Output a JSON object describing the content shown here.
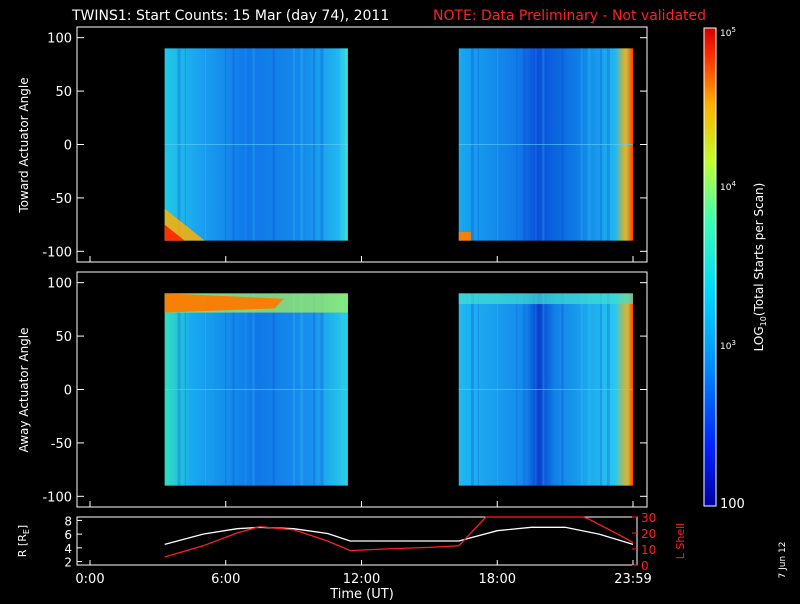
{
  "header": {
    "title": "TWINS1: Start Counts: 15 Mar (day  74), 2011",
    "note": "NOTE: Data Preliminary - Not validated",
    "note_color": "#ff2020"
  },
  "panels": {
    "toward": {
      "ylabel": "Toward Actuator Angle"
    },
    "away": {
      "ylabel": "Away Actuator Angle"
    },
    "ephem": {
      "ylabel_left": "R [R",
      "ylabel_left_sub": "E",
      "ylabel_left_end": "]",
      "ylabel_right": "L Shell",
      "ylabel_right_color": "#ff2020"
    }
  },
  "colorbar": {
    "label": "LOG",
    "label_sub": "10",
    "label_rest": "(Total Starts per Scan)",
    "tick_labels": [
      "100",
      "10",
      "10",
      "10"
    ],
    "tick_sups": [
      "",
      "3",
      "4",
      "5"
    ]
  },
  "xaxis": {
    "label": "Time (UT)"
  },
  "footer": {
    "date": "7 Jun 12"
  },
  "chart_data": [
    {
      "type": "heatmap",
      "title": "Toward Actuator Angle",
      "ylabel": "Toward Actuator Angle",
      "ylim": [
        -110,
        110
      ],
      "y_ticks": [
        100,
        50,
        0,
        -50,
        -100
      ],
      "x_ticks": [
        "0:00",
        "6:00",
        "12:00",
        "18:00",
        "23:59"
      ],
      "xlim_hours": [
        0,
        24
      ],
      "z_scale": "log10",
      "z_range": [
        100,
        100000
      ],
      "data_blocks": [
        {
          "x_hours": [
            3.3,
            11.4
          ],
          "y_deg": [
            -90,
            90
          ],
          "typical_log_counts": 3.0
        },
        {
          "x_hours": [
            16.3,
            24.0
          ],
          "y_deg": [
            -90,
            90
          ],
          "typical_log_counts": 2.9
        }
      ]
    },
    {
      "type": "heatmap",
      "title": "Away Actuator Angle",
      "ylabel": "Away Actuator Angle",
      "ylim": [
        -110,
        110
      ],
      "y_ticks": [
        100,
        50,
        0,
        -50,
        -100
      ],
      "x_ticks": [
        "0:00",
        "6:00",
        "12:00",
        "18:00",
        "23:59"
      ],
      "xlim_hours": [
        0,
        24
      ],
      "z_scale": "log10",
      "z_range": [
        100,
        100000
      ],
      "data_blocks": [
        {
          "x_hours": [
            3.3,
            11.4
          ],
          "y_deg": [
            -90,
            90
          ],
          "typical_log_counts": 3.1
        },
        {
          "x_hours": [
            16.3,
            24.0
          ],
          "y_deg": [
            -90,
            90
          ],
          "typical_log_counts": 3.0
        }
      ]
    },
    {
      "type": "line",
      "x_ticks": [
        "0:00",
        "6:00",
        "12:00",
        "18:00",
        "23:59"
      ],
      "xlabel": "Time (UT)",
      "y_left_ticks": [
        2,
        4,
        6,
        8
      ],
      "y_left_lim": [
        1.5,
        8.5
      ],
      "y_right_ticks": [
        0,
        10,
        20,
        30
      ],
      "y_right_lim": [
        0,
        30
      ],
      "series": [
        {
          "axis": "left",
          "color": "#ffffff",
          "x_hours": [
            3.3,
            5,
            6.5,
            7.5,
            9,
            10.5,
            11.5,
            13,
            15,
            16.3,
            18,
            19.5,
            21,
            22.5,
            24
          ],
          "values": [
            4.5,
            6.0,
            6.8,
            7.0,
            6.8,
            6.1,
            5.0,
            5.0,
            5.0,
            5.0,
            6.5,
            7.0,
            7.0,
            6.0,
            4.5
          ]
        },
        {
          "axis": "right",
          "color": "#ff2020",
          "x_hours": [
            3.3,
            5,
            6.5,
            7.5,
            9,
            10.5,
            11.5,
            13,
            15,
            16.3,
            17.5,
            17.7,
            21.8,
            22.0,
            23.5,
            24
          ],
          "values": [
            5,
            12,
            20,
            24,
            22,
            15,
            9,
            10,
            11,
            12,
            30,
            30,
            30,
            29,
            18,
            14
          ]
        }
      ]
    }
  ]
}
